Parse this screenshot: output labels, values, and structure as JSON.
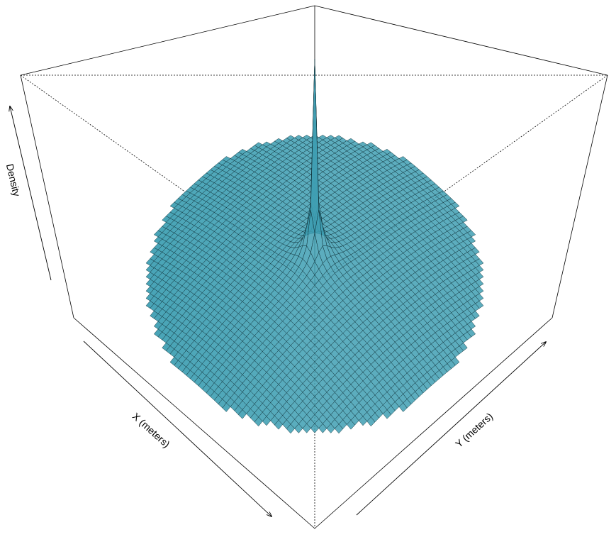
{
  "chart_data": {
    "type": "surface",
    "title": "",
    "xlabel": "X (meters)",
    "ylabel": "Y (meters)",
    "zlabel": "Density",
    "colors": {
      "surface": "#3f9fb3",
      "mesh": "#0c2a31",
      "box": "#000000"
    },
    "shape": "radially symmetric density, circular domain, sharp central spike",
    "grid": true,
    "legend": "none"
  }
}
